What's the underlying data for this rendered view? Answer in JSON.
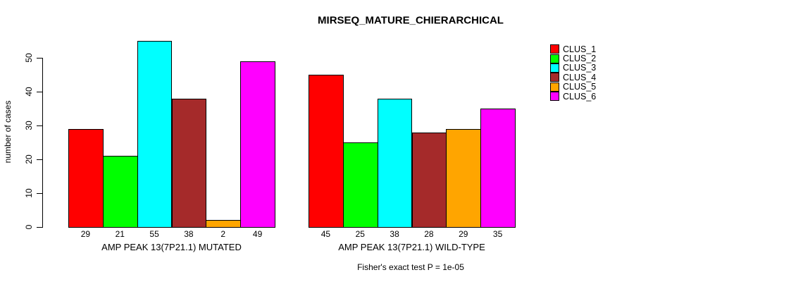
{
  "chart_data": {
    "type": "bar",
    "title": "MIRSEQ_MATURE_CHIERARCHICAL",
    "ylabel": "number of cases",
    "xlabel": "",
    "footer": "Fisher's exact test P = 1e-05",
    "categories": [
      "AMP PEAK 13(7P21.1) MUTATED",
      "AMP PEAK 13(7P21.1) WILD-TYPE"
    ],
    "series": [
      {
        "name": "CLUS_1",
        "color": "#FF0000",
        "values": [
          29,
          45
        ]
      },
      {
        "name": "CLUS_2",
        "color": "#00FF00",
        "values": [
          21,
          25
        ]
      },
      {
        "name": "CLUS_3",
        "color": "#00FFFF",
        "values": [
          55,
          38
        ]
      },
      {
        "name": "CLUS_4",
        "color": "#A52A2A",
        "values": [
          38,
          28
        ]
      },
      {
        "name": "CLUS_5",
        "color": "#FFA500",
        "values": [
          2,
          29
        ]
      },
      {
        "name": "CLUS_6",
        "color": "#FF00FF",
        "values": [
          49,
          35
        ]
      }
    ],
    "yticks": [
      0,
      10,
      20,
      30,
      40,
      50
    ],
    "ylim": [
      0,
      55
    ],
    "grid": false,
    "legend_position": "right",
    "bar_border_color": "#000000",
    "axis_color": "#000000",
    "value_labels_shown": true
  }
}
